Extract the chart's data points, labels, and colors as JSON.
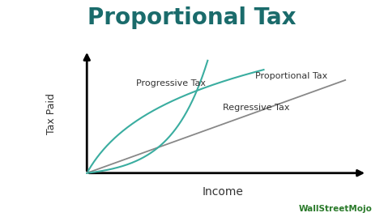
{
  "title": "Proportional Tax",
  "title_fontsize": 20,
  "title_fontweight": "bold",
  "title_color": "#1a6b6b",
  "xlabel": "Income",
  "ylabel": "Tax Paid",
  "xlabel_fontsize": 10,
  "ylabel_fontsize": 9,
  "background_color": "#ffffff",
  "teal_color": "#3aada0",
  "gray_color": "#888888",
  "annotation_color": "#333333",
  "annotation_fontsize": 8,
  "progressive_label": "Progressive Tax",
  "proportional_label": "Proportional Tax",
  "regressive_label": "Regressive Tax",
  "wsm_color": "#2a7a2a",
  "wsm_text": "WallStreetMojo"
}
